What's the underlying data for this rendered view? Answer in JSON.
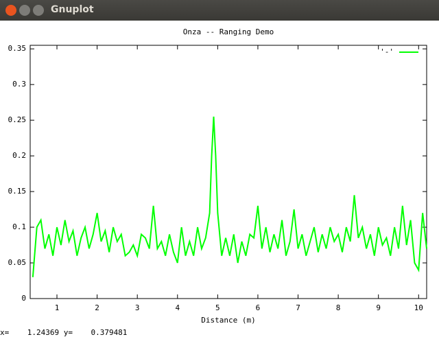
{
  "window": {
    "title": "Gnuplot"
  },
  "status": "x=    1.24369 y=    0.379481",
  "chart_data": {
    "type": "line",
    "title": "Onza -- Ranging Demo",
    "x_label": "Distance (m)",
    "x": [
      0.4,
      0.5,
      0.6,
      0.7,
      0.8,
      0.9,
      1.0,
      1.1,
      1.2,
      1.3,
      1.4,
      1.5,
      1.6,
      1.7,
      1.8,
      1.9,
      2.0,
      2.1,
      2.2,
      2.3,
      2.4,
      2.5,
      2.6,
      2.7,
      2.8,
      2.9,
      3.0,
      3.1,
      3.2,
      3.3,
      3.4,
      3.5,
      3.6,
      3.7,
      3.8,
      3.9,
      4.0,
      4.1,
      4.2,
      4.3,
      4.4,
      4.5,
      4.6,
      4.7,
      4.8,
      4.85,
      4.9,
      4.95,
      5.0,
      5.1,
      5.2,
      5.3,
      5.4,
      5.5,
      5.6,
      5.7,
      5.8,
      5.9,
      6.0,
      6.1,
      6.2,
      6.3,
      6.4,
      6.5,
      6.6,
      6.7,
      6.8,
      6.9,
      7.0,
      7.1,
      7.2,
      7.3,
      7.4,
      7.5,
      7.6,
      7.7,
      7.8,
      7.9,
      8.0,
      8.1,
      8.2,
      8.3,
      8.4,
      8.5,
      8.6,
      8.7,
      8.8,
      8.9,
      9.0,
      9.1,
      9.2,
      9.3,
      9.4,
      9.5,
      9.6,
      9.7,
      9.8,
      9.9,
      10.0,
      10.1,
      10.2
    ],
    "series": [
      {
        "name": "'-'",
        "color": "#00ff00",
        "values": [
          0.03,
          0.1,
          0.11,
          0.07,
          0.09,
          0.06,
          0.1,
          0.075,
          0.11,
          0.08,
          0.095,
          0.06,
          0.085,
          0.1,
          0.07,
          0.09,
          0.12,
          0.08,
          0.095,
          0.065,
          0.1,
          0.08,
          0.09,
          0.06,
          0.065,
          0.075,
          0.06,
          0.09,
          0.085,
          0.07,
          0.13,
          0.07,
          0.08,
          0.06,
          0.09,
          0.065,
          0.05,
          0.1,
          0.06,
          0.08,
          0.06,
          0.1,
          0.07,
          0.085,
          0.12,
          0.2,
          0.255,
          0.2,
          0.12,
          0.06,
          0.085,
          0.06,
          0.09,
          0.05,
          0.08,
          0.06,
          0.09,
          0.085,
          0.13,
          0.07,
          0.1,
          0.065,
          0.09,
          0.07,
          0.11,
          0.06,
          0.08,
          0.125,
          0.07,
          0.09,
          0.06,
          0.08,
          0.1,
          0.065,
          0.09,
          0.07,
          0.1,
          0.08,
          0.09,
          0.065,
          0.1,
          0.08,
          0.145,
          0.085,
          0.1,
          0.07,
          0.09,
          0.06,
          0.1,
          0.075,
          0.085,
          0.06,
          0.1,
          0.07,
          0.13,
          0.075,
          0.11,
          0.05,
          0.04,
          0.12,
          0.07
        ]
      }
    ],
    "xlim": [
      0.334,
      10.2
    ],
    "ylim": [
      0,
      0.355
    ],
    "xticks": [
      1,
      2,
      3,
      4,
      5,
      6,
      7,
      8,
      9,
      10
    ],
    "yticks": [
      0,
      0.05,
      0.1,
      0.15,
      0.2,
      0.25,
      0.3,
      0.35
    ]
  }
}
